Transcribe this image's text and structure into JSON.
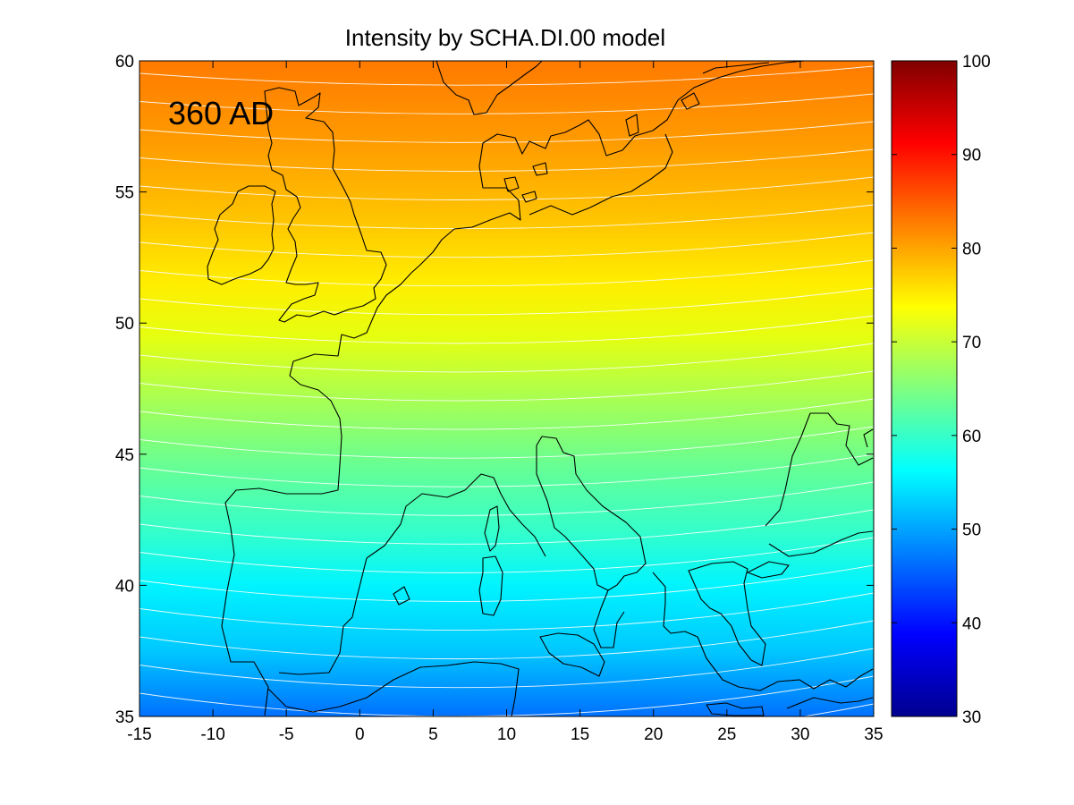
{
  "chart_data": {
    "type": "heatmap",
    "title": "Intensity by SCHA.DI.00 model",
    "annotation": "360 AD",
    "x_ticks": [
      "-15",
      "-10",
      "-5",
      "0",
      "5",
      "10",
      "15",
      "20",
      "25",
      "30",
      "35"
    ],
    "y_ticks": [
      "60",
      "55",
      "50",
      "45",
      "40",
      "35"
    ],
    "xlim": [
      -15,
      35
    ],
    "ylim": [
      35,
      60
    ],
    "colorbar": {
      "ticks": [
        "100",
        "90",
        "80",
        "70",
        "60",
        "50",
        "40",
        "30"
      ],
      "range": [
        30,
        100
      ],
      "colormap": "jet"
    },
    "contour_interval": 2,
    "intensity_samples": [
      {
        "lon": -15,
        "lat": 59,
        "value": 80
      },
      {
        "lon": 10,
        "lat": 59,
        "value": 81
      },
      {
        "lon": 35,
        "lat": 59,
        "value": 80
      },
      {
        "lon": 10,
        "lat": 52,
        "value": 72
      },
      {
        "lon": 10,
        "lat": 47,
        "value": 66
      },
      {
        "lon": 10,
        "lat": 41,
        "value": 58
      },
      {
        "lon": 10,
        "lat": 36,
        "value": 52
      },
      {
        "lon": 30,
        "lat": 35,
        "value": 50
      }
    ],
    "grid": false,
    "coastlines": true
  }
}
